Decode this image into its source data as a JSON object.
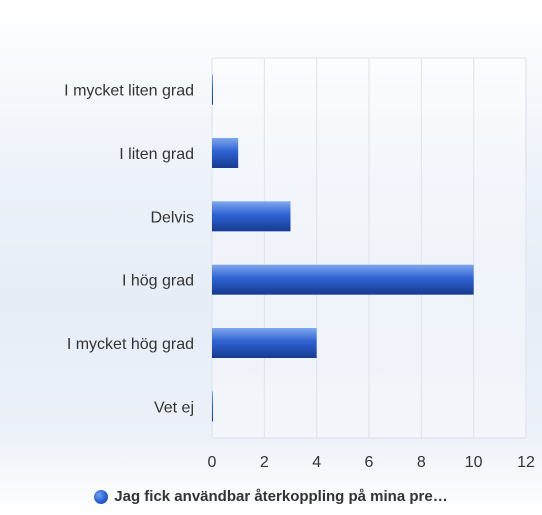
{
  "chart_data": {
    "type": "bar",
    "orientation": "horizontal",
    "categories": [
      "I mycket liten grad",
      "I liten grad",
      "Delvis",
      "I hög grad",
      "I mycket hög grad",
      "Vet ej"
    ],
    "series": [
      {
        "name": "Jag fick användbar återkoppling på mina pre…",
        "values": [
          0,
          1,
          3,
          10,
          4,
          0
        ]
      }
    ],
    "xlim": [
      0,
      12
    ],
    "xticks": [
      0,
      2,
      4,
      6,
      8,
      10,
      12
    ],
    "grid": true,
    "legend_position": "bottom",
    "colors": {
      "bar_light": "#5b8de6",
      "bar_mid": "#2756c8",
      "bar_dark": "#173a94",
      "grid": "#dde3ea",
      "text": "#333333"
    }
  }
}
